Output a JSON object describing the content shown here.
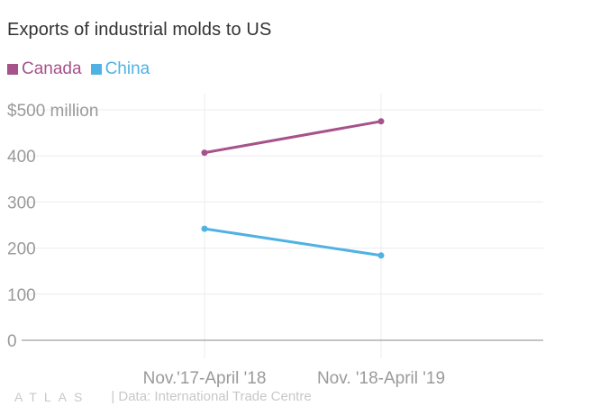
{
  "title": "Exports of industrial molds to US",
  "footer": {
    "logo": "ATLAS",
    "source": "| Data: International Trade Centre"
  },
  "colors": {
    "canada": "#a6528b",
    "china": "#4fb2e3",
    "axis_text": "#9a9a9a",
    "grid": "#ececec",
    "baseline": "#888888"
  },
  "chart_data": {
    "type": "line",
    "title": "Exports of industrial molds to US",
    "x": [
      "Nov.'17-April '18",
      "Nov. '18-April '19"
    ],
    "series": [
      {
        "name": "Canada",
        "values": [
          407,
          475
        ]
      },
      {
        "name": "China",
        "values": [
          242,
          184
        ]
      }
    ],
    "ylim": [
      0,
      500
    ],
    "yticks": [
      0,
      100,
      200,
      300,
      400,
      500
    ],
    "ytick_labels": [
      "0",
      "100",
      "200",
      "300",
      "400",
      "$500 million"
    ],
    "xlabel": "",
    "ylabel": "",
    "legend": "top-left",
    "grid": true
  }
}
